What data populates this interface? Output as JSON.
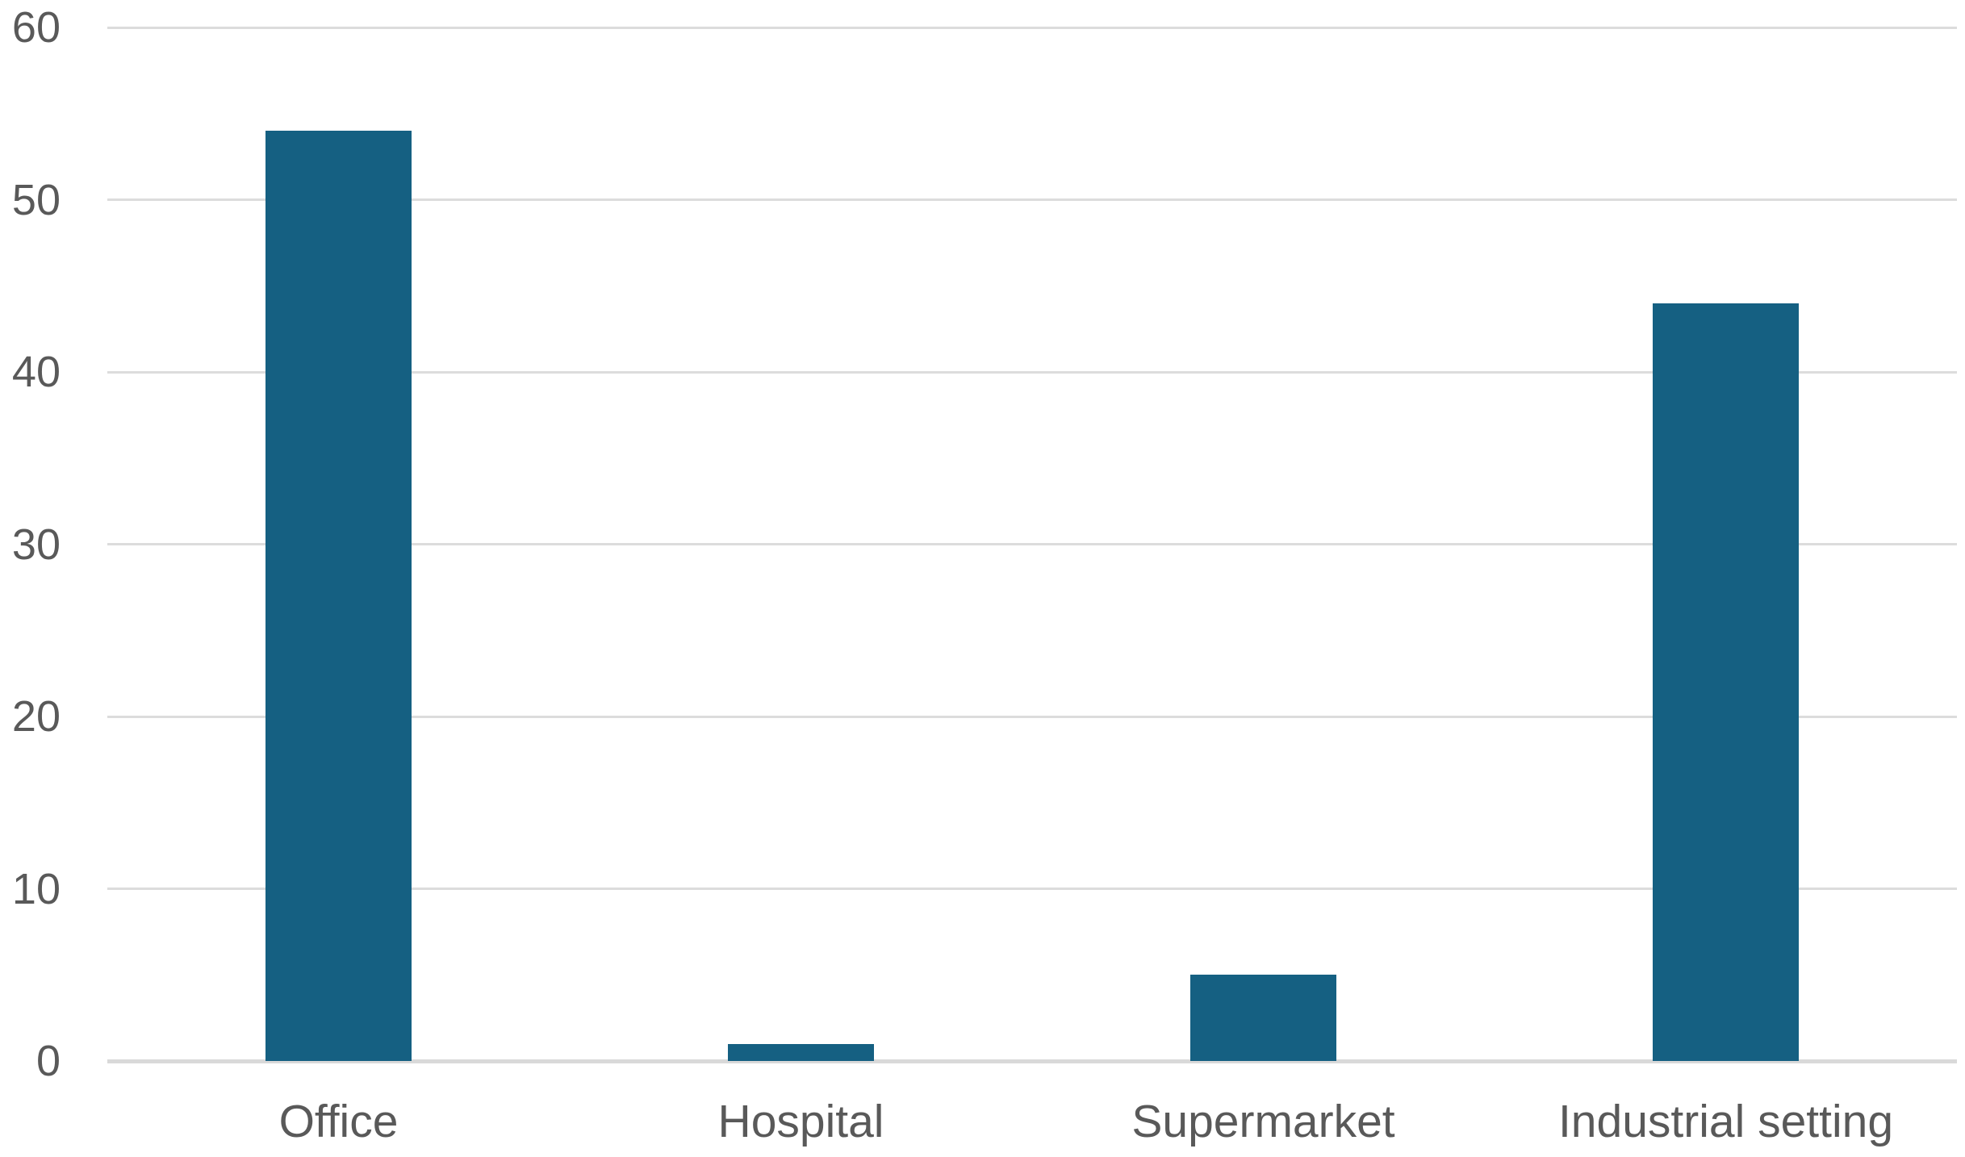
{
  "chart_data": {
    "type": "bar",
    "title": "",
    "xlabel": "",
    "ylabel": "",
    "categories": [
      "Office",
      "Hospital",
      "Supermarket",
      "Industrial setting"
    ],
    "values": [
      54,
      1,
      5,
      44
    ],
    "ylim": [
      0,
      60
    ],
    "yticks": [
      0,
      10,
      20,
      30,
      40,
      50,
      60
    ],
    "grid": true,
    "legend": false,
    "colors": {
      "bar": "#156082",
      "gridline": "#DCDCDC",
      "axis_line": "#D9D9D9",
      "tick_label": "#595959",
      "background": "#FFFFFF"
    }
  }
}
